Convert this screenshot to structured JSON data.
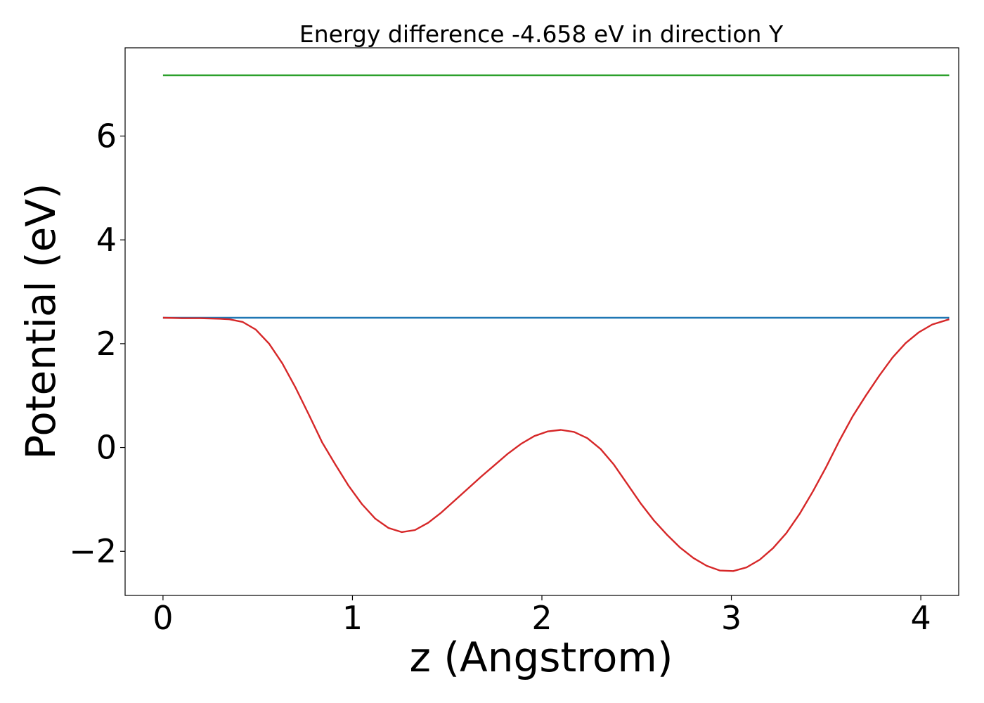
{
  "chart_data": {
    "type": "line",
    "title": "Energy difference -4.658 eV in direction Y",
    "xlabel": "z (Angstrom)",
    "ylabel": "Potential (eV)",
    "xlim": [
      -0.2,
      4.2
    ],
    "ylim": [
      -2.85,
      7.7
    ],
    "x_ticks": [
      {
        "value": 0,
        "label": "0"
      },
      {
        "value": 1,
        "label": "1"
      },
      {
        "value": 2,
        "label": "2"
      },
      {
        "value": 3,
        "label": "3"
      },
      {
        "value": 4,
        "label": "4"
      }
    ],
    "y_ticks": [
      {
        "value": -2,
        "label": "−2"
      },
      {
        "value": 0,
        "label": "0"
      },
      {
        "value": 2,
        "label": "2"
      },
      {
        "value": 4,
        "label": "4"
      },
      {
        "value": 6,
        "label": "6"
      }
    ],
    "grid": false,
    "series": [
      {
        "color": "#2ca02c",
        "x": [
          0,
          4.15
        ],
        "y": [
          7.17,
          7.17
        ]
      },
      {
        "color": "#1f77b4",
        "x": [
          0,
          4.15
        ],
        "y": [
          2.5,
          2.5
        ]
      },
      {
        "color": "#d62728",
        "x": [
          0,
          0.1,
          0.2,
          0.3,
          0.35,
          0.42,
          0.49,
          0.56,
          0.63,
          0.7,
          0.77,
          0.84,
          0.91,
          0.98,
          1.05,
          1.12,
          1.19,
          1.26,
          1.33,
          1.4,
          1.47,
          1.54,
          1.61,
          1.68,
          1.75,
          1.82,
          1.89,
          1.96,
          2.03,
          2.1,
          2.17,
          2.24,
          2.31,
          2.38,
          2.45,
          2.52,
          2.59,
          2.66,
          2.73,
          2.8,
          2.87,
          2.94,
          3.01,
          3.08,
          3.15,
          3.22,
          3.29,
          3.36,
          3.43,
          3.5,
          3.57,
          3.64,
          3.71,
          3.78,
          3.85,
          3.92,
          3.99,
          4.06,
          4.15
        ],
        "y": [
          2.5,
          2.49,
          2.49,
          2.48,
          2.47,
          2.42,
          2.27,
          2.0,
          1.62,
          1.15,
          0.63,
          0.1,
          -0.33,
          -0.74,
          -1.09,
          -1.37,
          -1.55,
          -1.63,
          -1.59,
          -1.45,
          -1.25,
          -1.02,
          -0.79,
          -0.56,
          -0.34,
          -0.12,
          0.07,
          0.22,
          0.31,
          0.34,
          0.3,
          0.18,
          -0.03,
          -0.33,
          -0.7,
          -1.07,
          -1.4,
          -1.68,
          -1.93,
          -2.13,
          -2.28,
          -2.37,
          -2.38,
          -2.31,
          -2.16,
          -1.94,
          -1.65,
          -1.28,
          -0.85,
          -0.38,
          0.13,
          0.6,
          1.0,
          1.38,
          1.73,
          2.01,
          2.22,
          2.37,
          2.47
        ]
      }
    ]
  }
}
